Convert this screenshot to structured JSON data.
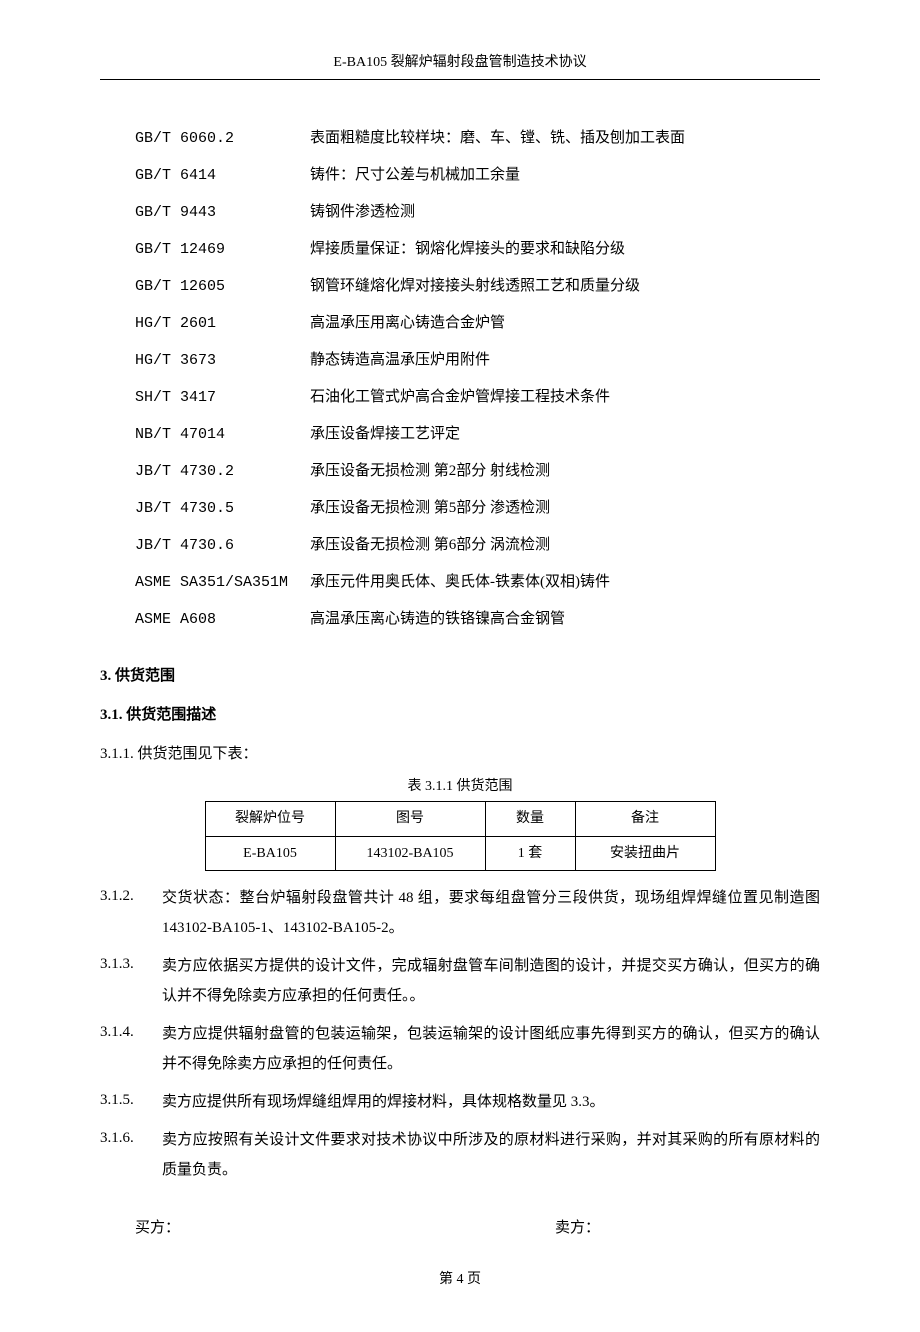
{
  "header": {
    "title": "E-BA105 裂解炉辐射段盘管制造技术协议"
  },
  "standards": [
    {
      "code": "GB/T 6060.2",
      "desc": "表面粗糙度比较样块：磨、车、镗、铣、插及刨加工表面"
    },
    {
      "code": "GB/T 6414",
      "desc": "铸件：尺寸公差与机械加工余量"
    },
    {
      "code": "GB/T 9443",
      "desc": "铸钢件渗透检测"
    },
    {
      "code": "GB/T 12469",
      "desc": "焊接质量保证：钢熔化焊接头的要求和缺陷分级"
    },
    {
      "code": "GB/T 12605",
      "desc": "钢管环缝熔化焊对接接头射线透照工艺和质量分级"
    },
    {
      "code": "HG/T 2601",
      "desc": "高温承压用离心铸造合金炉管"
    },
    {
      "code": "HG/T 3673",
      "desc": "静态铸造高温承压炉用附件"
    },
    {
      "code": "SH/T 3417",
      "desc": "石油化工管式炉高合金炉管焊接工程技术条件"
    },
    {
      "code": "NB/T 47014",
      "desc": "承压设备焊接工艺评定"
    },
    {
      "code": "JB/T 4730.2",
      "desc": "承压设备无损检测 第2部分 射线检测"
    },
    {
      "code": "JB/T 4730.5",
      "desc": "承压设备无损检测 第5部分 渗透检测"
    },
    {
      "code": "JB/T 4730.6",
      "desc": "承压设备无损检测 第6部分 涡流检测"
    },
    {
      "code": "ASME SA351/SA351M",
      "desc": "承压元件用奥氏体、奥氏体-铁素体(双相)铸件"
    },
    {
      "code": "ASME A608",
      "desc": "高温承压离心铸造的铁铬镍高合金钢管"
    }
  ],
  "section3": {
    "heading": "3.  供货范围",
    "sub1": {
      "heading": "3.1. 供货范围描述",
      "item1": "3.1.1. 供货范围见下表：",
      "table": {
        "caption": "表 3.1.1 供货范围",
        "headers": [
          "裂解炉位号",
          "图号",
          "数量",
          "备注"
        ],
        "rows": [
          [
            "E-BA105",
            "143102-BA105",
            "1 套",
            "安装扭曲片"
          ]
        ],
        "col_widths": [
          "130px",
          "150px",
          "90px",
          "140px"
        ]
      },
      "item2": {
        "num": "3.1.2.",
        "text": "交货状态：整台炉辐射段盘管共计 48 组，要求每组盘管分三段供货，现场组焊焊缝位置见制造图 143102-BA105-1、143102-BA105-2。"
      },
      "item3": {
        "num": "3.1.3.",
        "text": "卖方应依据买方提供的设计文件，完成辐射盘管车间制造图的设计，并提交买方确认，但买方的确认并不得免除卖方应承担的任何责任。。"
      },
      "item4": {
        "num": "3.1.4.",
        "text": "卖方应提供辐射盘管的包装运输架，包装运输架的设计图纸应事先得到买方的确认，但买方的确认并不得免除卖方应承担的任何责任。"
      },
      "item5": {
        "num": "3.1.5.",
        "text": "卖方应提供所有现场焊缝组焊用的焊接材料，具体规格数量见 3.3。"
      },
      "item6": {
        "num": "3.1.6.",
        "text": "卖方应按照有关设计文件要求对技术协议中所涉及的原材料进行采购，并对其采购的所有原材料的质量负责。"
      }
    }
  },
  "signature": {
    "buyer": "买方：",
    "seller": "卖方："
  },
  "page": {
    "number": "第 4 页"
  }
}
